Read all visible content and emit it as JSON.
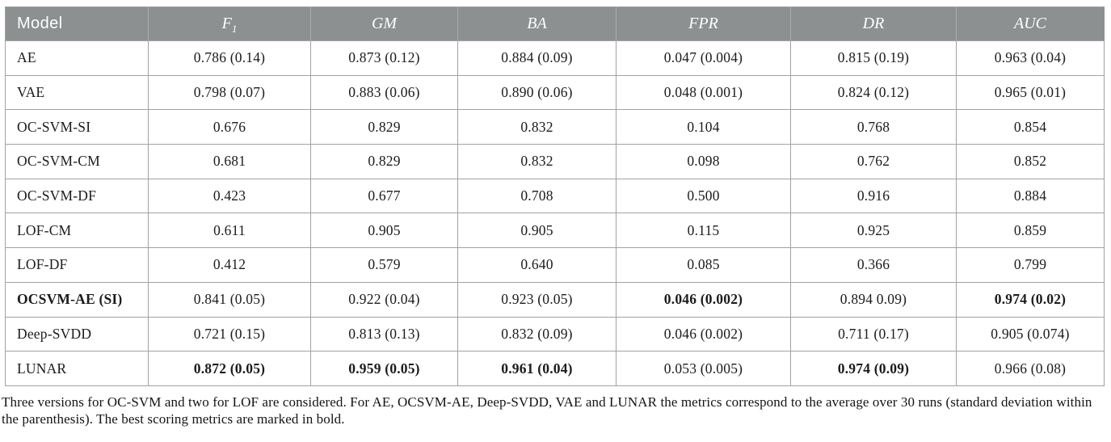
{
  "colors": {
    "header_bg": "#8c9091",
    "header_text": "#ffffff",
    "grid_border": "#a2a2a2",
    "body_text": "#1b1b1b"
  },
  "table": {
    "columns": [
      {
        "key": "model",
        "label": "Model",
        "sub": "",
        "italic": false
      },
      {
        "key": "f1",
        "label": "F",
        "sub": "1",
        "italic": true
      },
      {
        "key": "gm",
        "label": "GM",
        "sub": "",
        "italic": true
      },
      {
        "key": "ba",
        "label": "BA",
        "sub": "",
        "italic": true
      },
      {
        "key": "fpr",
        "label": "FPR",
        "sub": "",
        "italic": true
      },
      {
        "key": "dr",
        "label": "DR",
        "sub": "",
        "italic": true
      },
      {
        "key": "auc",
        "label": "AUC",
        "sub": "",
        "italic": true
      }
    ],
    "rows": [
      {
        "model": {
          "text": "AE",
          "bold": false
        },
        "cells": [
          {
            "text": "0.786 (0.14)",
            "bold": false
          },
          {
            "text": "0.873 (0.12)",
            "bold": false
          },
          {
            "text": "0.884 (0.09)",
            "bold": false
          },
          {
            "text": "0.047 (0.004)",
            "bold": false
          },
          {
            "text": "0.815 (0.19)",
            "bold": false
          },
          {
            "text": "0.963 (0.04)",
            "bold": false
          }
        ]
      },
      {
        "model": {
          "text": "VAE",
          "bold": false
        },
        "cells": [
          {
            "text": "0.798 (0.07)",
            "bold": false
          },
          {
            "text": "0.883 (0.06)",
            "bold": false
          },
          {
            "text": "0.890 (0.06)",
            "bold": false
          },
          {
            "text": "0.048 (0.001)",
            "bold": false
          },
          {
            "text": "0.824 (0.12)",
            "bold": false
          },
          {
            "text": "0.965 (0.01)",
            "bold": false
          }
        ]
      },
      {
        "model": {
          "text": "OC-SVM-SI",
          "bold": false
        },
        "cells": [
          {
            "text": "0.676",
            "bold": false
          },
          {
            "text": "0.829",
            "bold": false
          },
          {
            "text": "0.832",
            "bold": false
          },
          {
            "text": "0.104",
            "bold": false
          },
          {
            "text": "0.768",
            "bold": false
          },
          {
            "text": "0.854",
            "bold": false
          }
        ]
      },
      {
        "model": {
          "text": "OC-SVM-CM",
          "bold": false
        },
        "cells": [
          {
            "text": "0.681",
            "bold": false
          },
          {
            "text": "0.829",
            "bold": false
          },
          {
            "text": "0.832",
            "bold": false
          },
          {
            "text": "0.098",
            "bold": false
          },
          {
            "text": "0.762",
            "bold": false
          },
          {
            "text": "0.852",
            "bold": false
          }
        ]
      },
      {
        "model": {
          "text": "OC-SVM-DF",
          "bold": false
        },
        "cells": [
          {
            "text": "0.423",
            "bold": false
          },
          {
            "text": "0.677",
            "bold": false
          },
          {
            "text": "0.708",
            "bold": false
          },
          {
            "text": "0.500",
            "bold": false
          },
          {
            "text": "0.916",
            "bold": false
          },
          {
            "text": "0.884",
            "bold": false
          }
        ]
      },
      {
        "model": {
          "text": "LOF-CM",
          "bold": false
        },
        "cells": [
          {
            "text": "0.611",
            "bold": false
          },
          {
            "text": "0.905",
            "bold": false
          },
          {
            "text": "0.905",
            "bold": false
          },
          {
            "text": "0.115",
            "bold": false
          },
          {
            "text": "0.925",
            "bold": false
          },
          {
            "text": "0.859",
            "bold": false
          }
        ]
      },
      {
        "model": {
          "text": "LOF-DF",
          "bold": false
        },
        "cells": [
          {
            "text": "0.412",
            "bold": false
          },
          {
            "text": "0.579",
            "bold": false
          },
          {
            "text": "0.640",
            "bold": false
          },
          {
            "text": "0.085",
            "bold": false
          },
          {
            "text": "0.366",
            "bold": false
          },
          {
            "text": "0.799",
            "bold": false
          }
        ]
      },
      {
        "model": {
          "text": "OCSVM-AE (SI)",
          "bold": true
        },
        "cells": [
          {
            "text": "0.841 (0.05)",
            "bold": false
          },
          {
            "text": "0.922 (0.04)",
            "bold": false
          },
          {
            "text": "0.923 (0.05)",
            "bold": false
          },
          {
            "text": "0.046 (0.002)",
            "bold": true
          },
          {
            "text": "0.894 0.09)",
            "bold": false
          },
          {
            "text": "0.974 (0.02)",
            "bold": true
          }
        ]
      },
      {
        "model": {
          "text": "Deep-SVDD",
          "bold": false
        },
        "cells": [
          {
            "text": "0.721 (0.15)",
            "bold": false
          },
          {
            "text": "0.813 (0.13)",
            "bold": false
          },
          {
            "text": "0.832 (0.09)",
            "bold": false
          },
          {
            "text": "0.046 (0.002)",
            "bold": false
          },
          {
            "text": "0.711 (0.17)",
            "bold": false
          },
          {
            "text": "0.905 (0.074)",
            "bold": false
          }
        ]
      },
      {
        "model": {
          "text": "LUNAR",
          "bold": false
        },
        "cells": [
          {
            "text": "0.872 (0.05)",
            "bold": true
          },
          {
            "text": "0.959 (0.05)",
            "bold": true
          },
          {
            "text": "0.961 (0.04)",
            "bold": true
          },
          {
            "text": "0.053 (0.005)",
            "bold": false
          },
          {
            "text": "0.974 (0.09)",
            "bold": true
          },
          {
            "text": "0.966 (0.08)",
            "bold": false
          }
        ]
      }
    ]
  },
  "caption": {
    "text": "Three versions for OC-SVM and two for LOF are considered. For AE, OCSVM-AE, Deep-SVDD, VAE and LUNAR the metrics correspond to the average over 30 runs (standard deviation within the parenthesis). The best scoring metrics are marked in bold."
  }
}
